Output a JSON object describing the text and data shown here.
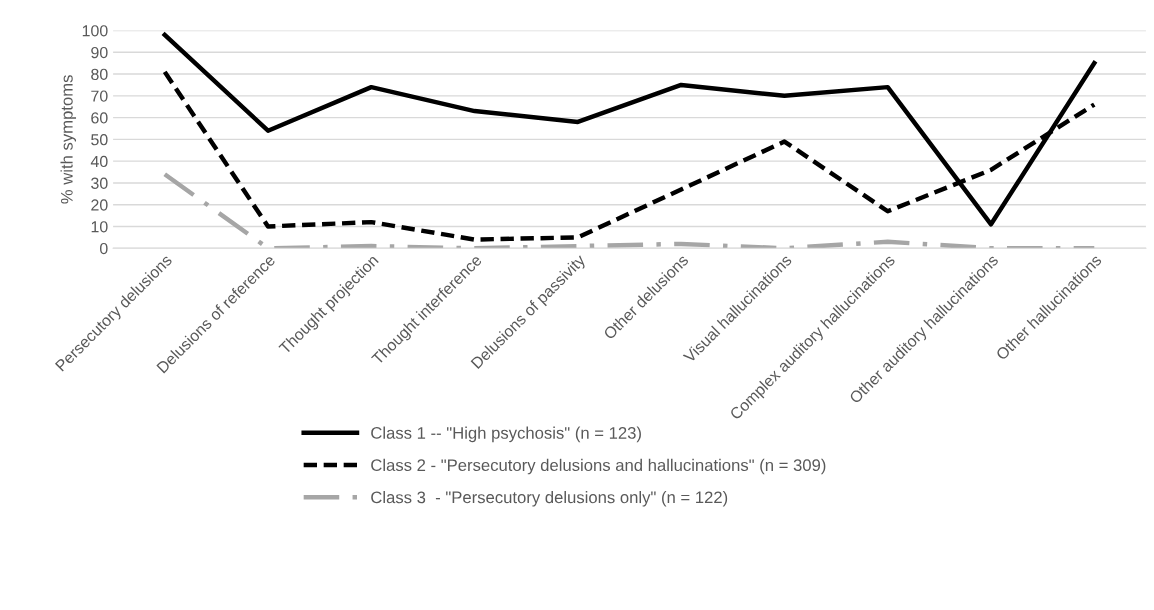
{
  "chart_data": {
    "type": "line",
    "ylabel": "% with symptoms",
    "categories": [
      "Persecutory delusions",
      "Delusions of reference",
      "Thought projection",
      "Thought interference",
      "Delusions of passivity",
      "Other delusions",
      "Visual hallucinations",
      "Complex auditory hallucinations",
      "Other auditory hallucinations",
      "Other hallucinations"
    ],
    "series": [
      {
        "name": "Class 1 -- \"High psychosis\" (n = 123)",
        "color": "#000000",
        "line_style": "solid",
        "values": [
          98,
          54,
          74,
          63,
          58,
          75,
          70,
          74,
          11,
          85
        ]
      },
      {
        "name": "Class 2 - \"Persecutory delusions and hallucinations\" (n = 309)",
        "color": "#000000",
        "line_style": "dashed",
        "values": [
          81,
          10,
          12,
          4,
          5,
          27,
          49,
          17,
          36,
          66
        ]
      },
      {
        "name": "Class 3  - \"Persecutory delusions only\" (n = 122)",
        "color": "#a6a6a6",
        "line_style": "dashdot",
        "values": [
          34,
          0,
          1,
          0,
          1,
          2,
          0,
          3,
          0,
          0
        ]
      }
    ],
    "ylim": [
      0,
      100
    ],
    "yticks": [
      0,
      10,
      20,
      30,
      40,
      50,
      60,
      70,
      80,
      90,
      100
    ],
    "grid": "y",
    "legend": "bottom",
    "marker": "none"
  }
}
